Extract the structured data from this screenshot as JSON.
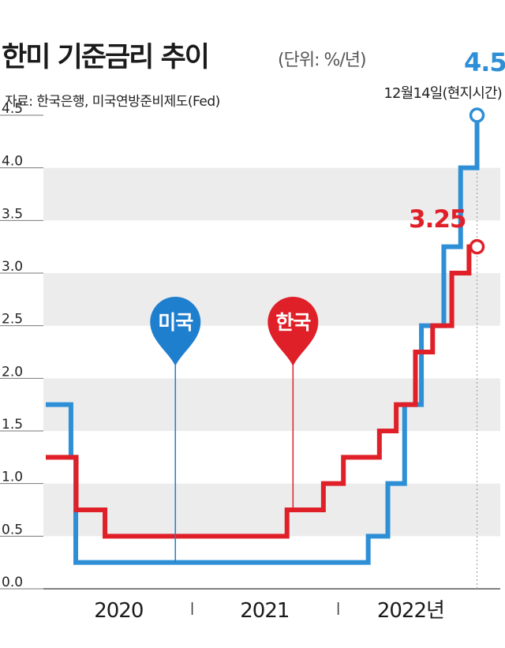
{
  "header": {
    "title": "한미 기준금리 추이",
    "unit": "(단위: %/년)",
    "source": "자료: 한국은행, 미국연방준비제도(Fed)",
    "us_final_label": "4.5",
    "date_note": "12월14일(현지시간)",
    "kr_final_label": "3.25"
  },
  "markers": [
    {
      "label": "미국",
      "color": "#1f7fcf"
    },
    {
      "label": "한국",
      "color": "#e02028"
    }
  ],
  "chart_data": {
    "type": "line",
    "step": true,
    "ylim": [
      0,
      4.5
    ],
    "yticks": [
      0.0,
      0.5,
      1.0,
      1.5,
      2.0,
      2.5,
      3.0,
      3.5,
      4.0,
      4.5
    ],
    "ytick_labels": [
      "0.0",
      "0.5",
      "1.0",
      "1.5",
      "2.0",
      "2.5",
      "3.0",
      "3.5",
      "4.0",
      "4.5"
    ],
    "x_range": [
      "2020-01-01",
      "2022-12-31"
    ],
    "xlabels": [
      "2020",
      "2021",
      "2022년"
    ],
    "grid": "alternating horizontal bands",
    "series": [
      {
        "name": "미국",
        "color": "#2e8fd6",
        "points": [
          [
            "2020-01-01",
            1.75
          ],
          [
            "2020-03-04",
            1.25
          ],
          [
            "2020-03-16",
            0.25
          ],
          [
            "2022-03-17",
            0.5
          ],
          [
            "2022-05-05",
            1.0
          ],
          [
            "2022-06-16",
            1.75
          ],
          [
            "2022-07-28",
            2.5
          ],
          [
            "2022-09-22",
            3.25
          ],
          [
            "2022-11-03",
            4.0
          ],
          [
            "2022-12-14",
            4.5
          ]
        ]
      },
      {
        "name": "한국",
        "color": "#e02028",
        "points": [
          [
            "2020-01-01",
            1.25
          ],
          [
            "2020-03-17",
            0.75
          ],
          [
            "2020-05-28",
            0.5
          ],
          [
            "2021-08-26",
            0.75
          ],
          [
            "2021-11-25",
            1.0
          ],
          [
            "2022-01-14",
            1.25
          ],
          [
            "2022-04-14",
            1.5
          ],
          [
            "2022-05-26",
            1.75
          ],
          [
            "2022-07-13",
            2.25
          ],
          [
            "2022-08-25",
            2.5
          ],
          [
            "2022-10-12",
            3.0
          ],
          [
            "2022-11-24",
            3.25
          ],
          [
            "2022-12-14",
            3.25
          ]
        ]
      }
    ]
  }
}
